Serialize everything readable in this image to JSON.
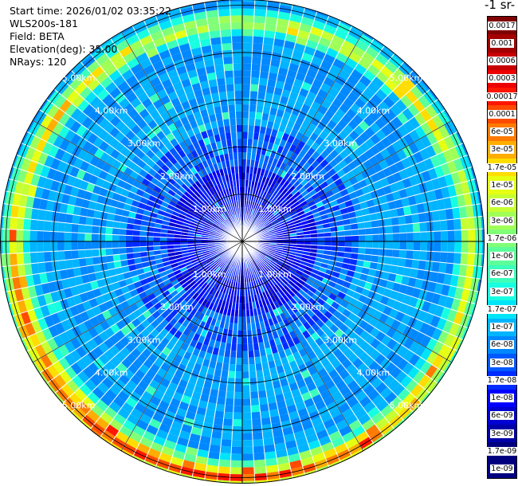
{
  "header": {
    "start_time": "Start time: 2026/01/02 03:35:22",
    "instrument": "WLS200s-181",
    "field": "Field: BETA",
    "elevation": "Elevation(deg): 35.00",
    "nrays": "NRays: 120"
  },
  "colorbar": {
    "title": "-1 sr-",
    "levels": [
      "0.0017",
      "0.001",
      "0.0006",
      "0.0003",
      "0.00017",
      "0.0001",
      "6e-05",
      "3e-05",
      "1.7e-05",
      "1e-05",
      "6e-06",
      "3e-06",
      "1.7e-06",
      "1e-06",
      "6e-07",
      "3e-07",
      "1.7e-07",
      "1e-07",
      "6e-08",
      "3e-08",
      "1.7e-08",
      "1e-08",
      "6e-09",
      "3e-09",
      "1.7e-09",
      "1e-09"
    ],
    "colors": [
      "#800000",
      "#a30000",
      "#c80000",
      "#ed0000",
      "#ff1600",
      "#ff4a00",
      "#ff7a00",
      "#ffad00",
      "#ffdd00",
      "#e6ff12",
      "#c6ff32",
      "#a0ff57",
      "#80ff77",
      "#5dff9a",
      "#3cffbb",
      "#17ffe0",
      "#00e4f8",
      "#00b4ff",
      "#0088ff",
      "#0058ff",
      "#002cff",
      "#0000ff",
      "#0000d1",
      "#0000a8",
      "#00007e",
      "#000080"
    ]
  },
  "chart_data": {
    "type": "heatmap",
    "subtype": "polar-ppi",
    "field": "BETA",
    "nrays": 120,
    "elevation_deg": 35.0,
    "max_range_km": 5.8,
    "range_ring_labels_km": [
      "1.00km",
      "2.00km",
      "3.00km",
      "4.00km",
      "5.00km"
    ],
    "range_rings_km": [
      1,
      2,
      3,
      4,
      5
    ],
    "value_scale": "log",
    "colormap": "jet",
    "value_range": [
      1e-09,
      0.0017
    ],
    "background_level": "1e-07",
    "near_range_level": "1e-08",
    "aerosol_layer": {
      "range_km": [
        4.7,
        5.0
      ],
      "peak_level": "0.0003",
      "azimuths_brightest": "south, west, north-east"
    },
    "grid": true,
    "legend_position": "right"
  }
}
